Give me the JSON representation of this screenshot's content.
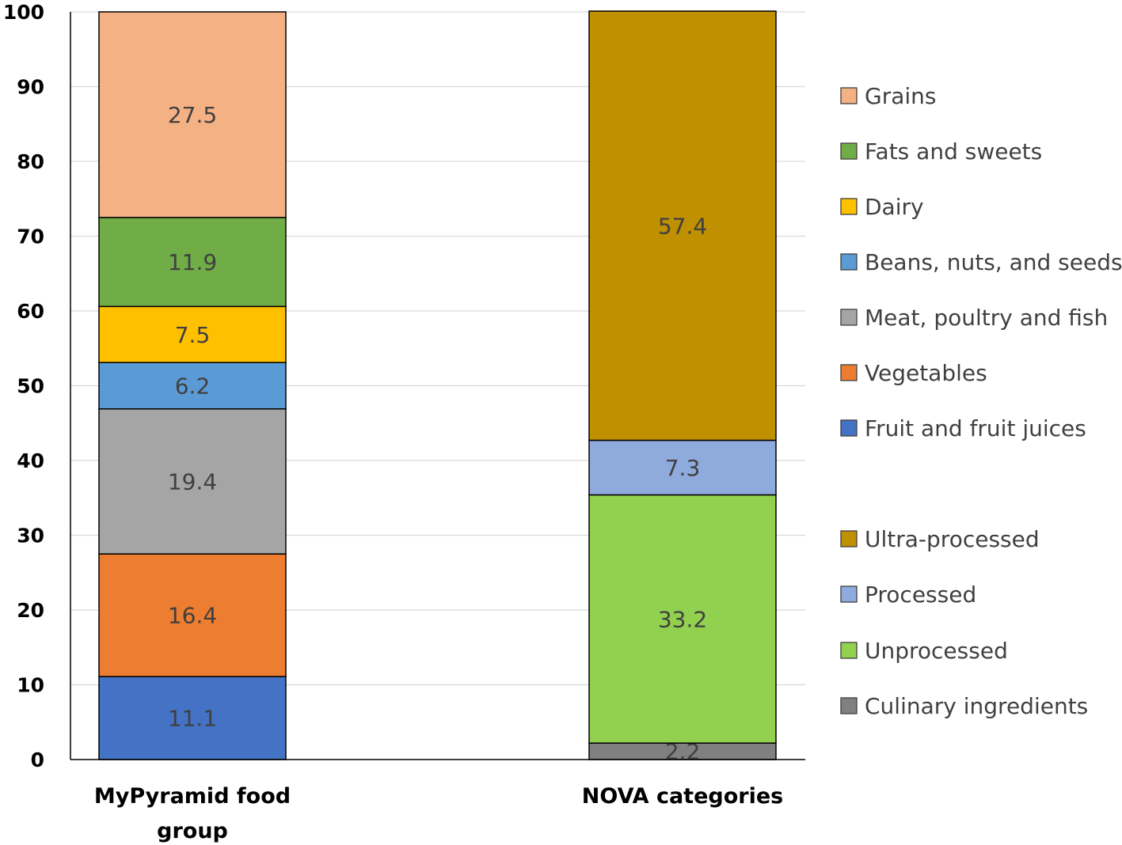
{
  "chart_data": {
    "type": "bar",
    "stacked": true,
    "ylim": [
      0,
      100
    ],
    "yticks": [
      0,
      10,
      20,
      30,
      40,
      50,
      60,
      70,
      80,
      90,
      100
    ],
    "grid": true,
    "legend_position": "right",
    "categories": [
      {
        "label_lines": [
          "MyPyramid food",
          "group"
        ],
        "segments": [
          {
            "name": "Fruit and fruit juices",
            "value": 11.1,
            "label": "11.1",
            "color": "#4472C4"
          },
          {
            "name": "Vegetables",
            "value": 16.4,
            "label": "16.4",
            "color": "#ED7D31"
          },
          {
            "name": "Meat, poultry and fish",
            "value": 19.4,
            "label": "19.4",
            "color": "#A5A5A5"
          },
          {
            "name": "Beans, nuts, and seeds",
            "value": 6.2,
            "label": "6.2",
            "color": "#5B9BD5"
          },
          {
            "name": "Dairy",
            "value": 7.5,
            "label": "7.5",
            "color": "#FFC000"
          },
          {
            "name": "Fats and sweets",
            "value": 11.9,
            "label": "11.9",
            "color": "#70AD47"
          },
          {
            "name": "Grains",
            "value": 27.5,
            "label": "27.5",
            "color": "#F4B183"
          }
        ]
      },
      {
        "label_lines": [
          "NOVA categories"
        ],
        "segments": [
          {
            "name": "Culinary ingredients",
            "value": 2.2,
            "label": "2.2",
            "color": "#808080"
          },
          {
            "name": "Unprocessed",
            "value": 33.2,
            "label": "33.2",
            "color": "#92D050"
          },
          {
            "name": "Processed",
            "value": 7.3,
            "label": "7.3",
            "color": "#8FAADC"
          },
          {
            "name": "Ultra-processed",
            "value": 57.4,
            "label": "57.4",
            "color": "#BF9000"
          }
        ]
      }
    ],
    "legend": [
      {
        "name": "Grains",
        "color": "#F4B183"
      },
      {
        "name": "Fats and sweets",
        "color": "#70AD47"
      },
      {
        "name": "Dairy",
        "color": "#FFC000"
      },
      {
        "name": "Beans, nuts, and seeds",
        "color": "#5B9BD5"
      },
      {
        "name": "Meat, poultry and fish",
        "color": "#A5A5A5"
      },
      {
        "name": "Vegetables",
        "color": "#ED7D31"
      },
      {
        "name": "Fruit and fruit juices",
        "color": "#4472C4"
      },
      {
        "name": "Ultra-processed",
        "color": "#BF9000"
      },
      {
        "name": "Processed",
        "color": "#8FAADC"
      },
      {
        "name": "Unprocessed",
        "color": "#92D050"
      },
      {
        "name": "Culinary ingredients",
        "color": "#808080"
      }
    ]
  }
}
